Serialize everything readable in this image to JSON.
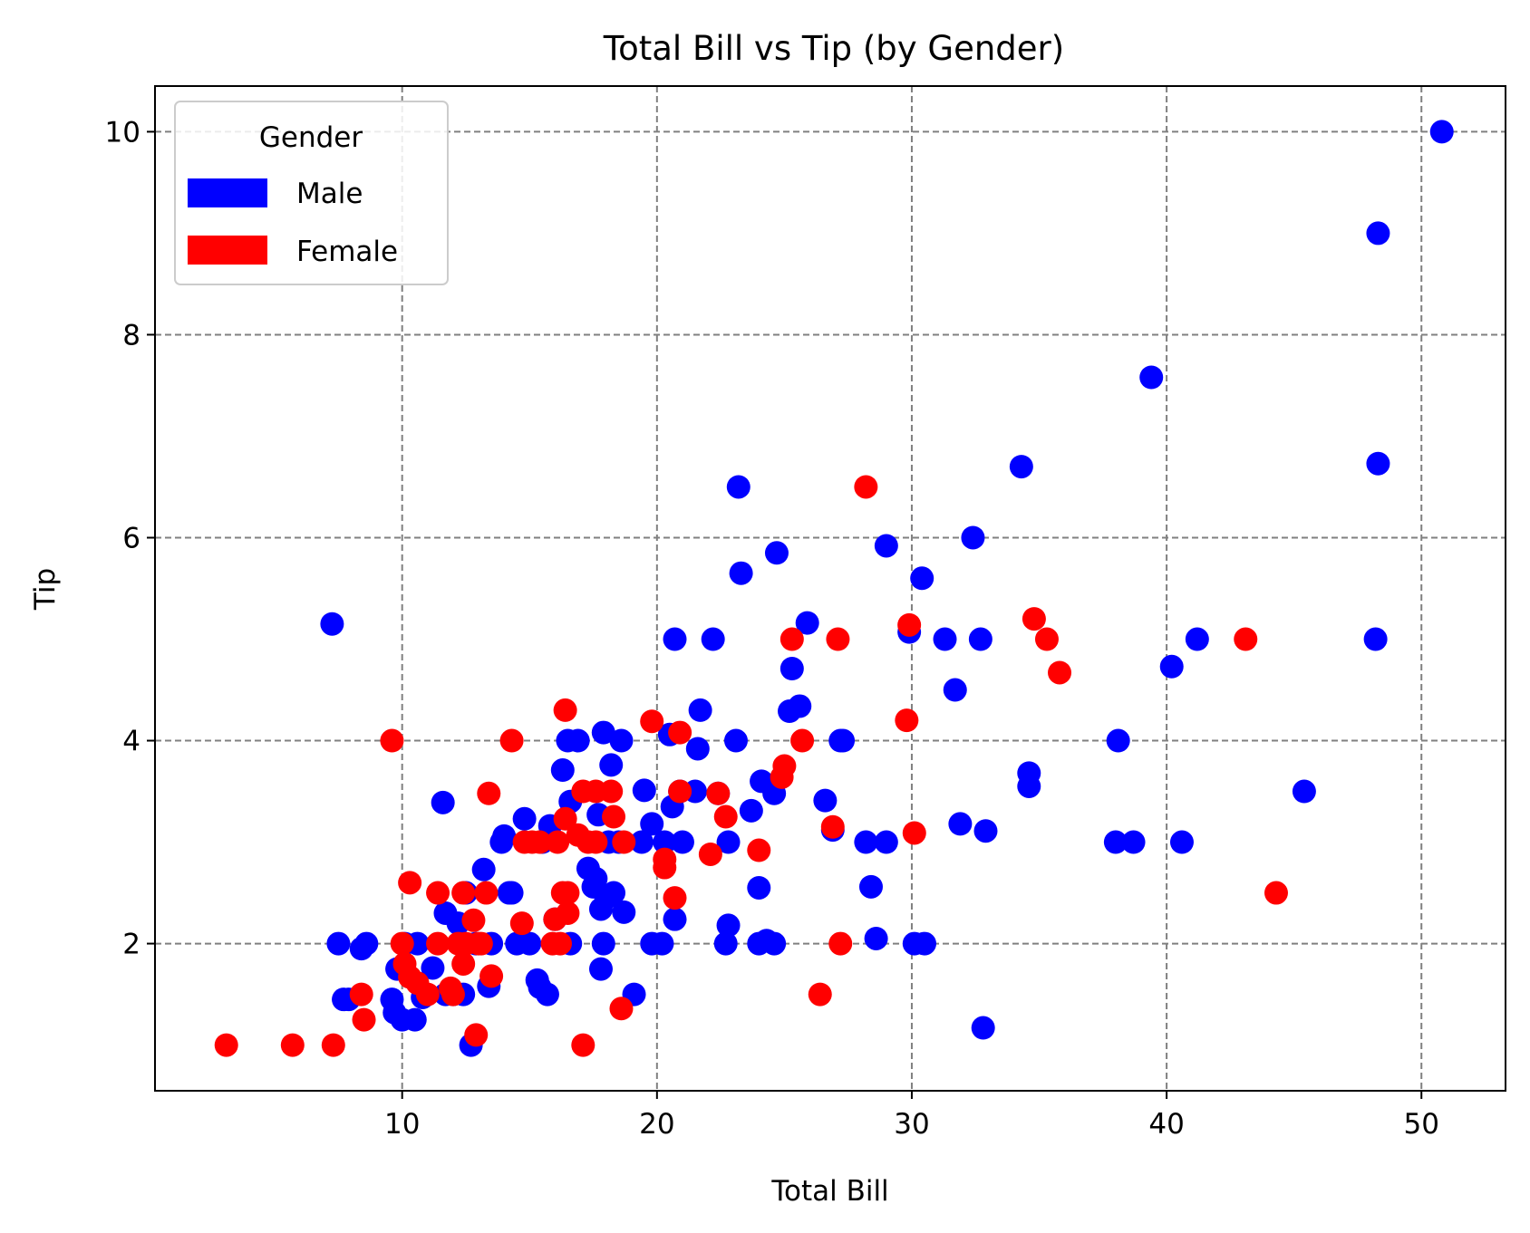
{
  "chart_data": {
    "type": "scatter",
    "title": "Total Bill vs Tip (by Gender)",
    "xlabel": "Total Bill",
    "ylabel": "Tip",
    "xlim": [
      0.3,
      53.3
    ],
    "ylim": [
      0.55,
      10.45
    ],
    "xticks": [
      10,
      20,
      30,
      40,
      50
    ],
    "xtick_labels": [
      "10",
      "20",
      "30",
      "40",
      "50"
    ],
    "yticks": [
      2,
      4,
      6,
      8,
      10
    ],
    "ytick_labels": [
      "2",
      "4",
      "6",
      "8",
      "10"
    ],
    "grid": true,
    "legend": {
      "title": "Gender",
      "placement": "top-left"
    },
    "series": [
      {
        "name": "Male",
        "color": "#0000ff",
        "points": [
          [
            7.25,
            5.15
          ],
          [
            7.5,
            2.0
          ],
          [
            7.7,
            1.45
          ],
          [
            7.9,
            1.45
          ],
          [
            8.4,
            1.95
          ],
          [
            8.6,
            2.0
          ],
          [
            9.6,
            1.45
          ],
          [
            9.7,
            1.32
          ],
          [
            9.8,
            1.75
          ],
          [
            10.0,
            1.25
          ],
          [
            10.1,
            2.0
          ],
          [
            10.5,
            1.25
          ],
          [
            10.6,
            2.0
          ],
          [
            10.8,
            1.47
          ],
          [
            11.2,
            1.76
          ],
          [
            11.6,
            3.39
          ],
          [
            11.7,
            1.5
          ],
          [
            11.7,
            2.3
          ],
          [
            12.0,
            1.5
          ],
          [
            12.2,
            2.2
          ],
          [
            12.4,
            1.5
          ],
          [
            12.5,
            2.5
          ],
          [
            12.7,
            1.0
          ],
          [
            12.9,
            2.0
          ],
          [
            13.2,
            2.73
          ],
          [
            13.4,
            1.58
          ],
          [
            13.5,
            2.0
          ],
          [
            13.9,
            3.0
          ],
          [
            14.0,
            3.06
          ],
          [
            14.2,
            2.5
          ],
          [
            14.3,
            2.5
          ],
          [
            14.5,
            2.0
          ],
          [
            14.8,
            3.23
          ],
          [
            15.0,
            2.0
          ],
          [
            15.3,
            1.64
          ],
          [
            15.4,
            1.57
          ],
          [
            15.5,
            3.0
          ],
          [
            15.7,
            1.5
          ],
          [
            15.8,
            3.16
          ],
          [
            16.0,
            2.24
          ],
          [
            16.3,
            3.71
          ],
          [
            16.5,
            4.0
          ],
          [
            16.6,
            2.0
          ],
          [
            16.6,
            3.4
          ],
          [
            16.9,
            4.0
          ],
          [
            17.3,
            2.74
          ],
          [
            17.5,
            2.56
          ],
          [
            17.6,
            2.64
          ],
          [
            17.7,
            3.27
          ],
          [
            17.8,
            1.75
          ],
          [
            17.8,
            2.34
          ],
          [
            17.9,
            4.08
          ],
          [
            17.9,
            2.0
          ],
          [
            18.0,
            2.45
          ],
          [
            18.1,
            3.0
          ],
          [
            18.2,
            3.76
          ],
          [
            18.3,
            2.5
          ],
          [
            18.5,
            3.0
          ],
          [
            18.6,
            4.0
          ],
          [
            18.7,
            2.31
          ],
          [
            19.1,
            1.5
          ],
          [
            19.4,
            3.0
          ],
          [
            19.5,
            3.51
          ],
          [
            19.8,
            2.0
          ],
          [
            19.8,
            3.18
          ],
          [
            20.2,
            2.0
          ],
          [
            20.3,
            3.0
          ],
          [
            20.5,
            4.06
          ],
          [
            20.6,
            3.35
          ],
          [
            20.7,
            5.0
          ],
          [
            20.7,
            2.24
          ],
          [
            20.9,
            3.5
          ],
          [
            21.0,
            3.0
          ],
          [
            21.5,
            3.5
          ],
          [
            21.6,
            3.92
          ],
          [
            21.7,
            4.3
          ],
          [
            22.2,
            5.0
          ],
          [
            22.4,
            3.48
          ],
          [
            22.7,
            2.0
          ],
          [
            22.8,
            2.18
          ],
          [
            22.8,
            3.0
          ],
          [
            23.1,
            4.0
          ],
          [
            23.2,
            6.5
          ],
          [
            23.3,
            5.65
          ],
          [
            23.7,
            3.31
          ],
          [
            24.0,
            2.55
          ],
          [
            24.0,
            2.0
          ],
          [
            24.1,
            3.6
          ],
          [
            24.3,
            2.03
          ],
          [
            24.6,
            3.48
          ],
          [
            24.6,
            2.0
          ],
          [
            24.7,
            5.85
          ],
          [
            25.2,
            4.29
          ],
          [
            25.3,
            4.71
          ],
          [
            25.6,
            4.34
          ],
          [
            25.9,
            5.16
          ],
          [
            26.6,
            3.41
          ],
          [
            26.9,
            3.12
          ],
          [
            27.2,
            4.0
          ],
          [
            27.3,
            4.0
          ],
          [
            28.2,
            3.0
          ],
          [
            28.4,
            2.56
          ],
          [
            28.6,
            2.05
          ],
          [
            29.0,
            5.92
          ],
          [
            29.0,
            3.0
          ],
          [
            29.9,
            5.07
          ],
          [
            30.1,
            2.0
          ],
          [
            30.4,
            5.6
          ],
          [
            30.5,
            2.0
          ],
          [
            31.3,
            5.0
          ],
          [
            31.7,
            4.5
          ],
          [
            31.9,
            3.18
          ],
          [
            32.4,
            6.0
          ],
          [
            32.7,
            5.0
          ],
          [
            32.8,
            1.17
          ],
          [
            32.9,
            3.11
          ],
          [
            34.3,
            6.7
          ],
          [
            34.6,
            3.68
          ],
          [
            34.6,
            3.55
          ],
          [
            38.0,
            3.0
          ],
          [
            38.1,
            4.0
          ],
          [
            38.7,
            3.0
          ],
          [
            39.4,
            7.58
          ],
          [
            40.2,
            4.73
          ],
          [
            40.6,
            3.0
          ],
          [
            41.2,
            5.0
          ],
          [
            45.4,
            3.5
          ],
          [
            48.2,
            5.0
          ],
          [
            48.3,
            6.73
          ],
          [
            48.3,
            9.0
          ],
          [
            50.8,
            10.0
          ]
        ]
      },
      {
        "name": "Female",
        "color": "#ff0000",
        "points": [
          [
            3.1,
            1.0
          ],
          [
            5.7,
            1.0
          ],
          [
            7.3,
            1.0
          ],
          [
            8.4,
            1.5
          ],
          [
            8.5,
            1.25
          ],
          [
            9.6,
            4.0
          ],
          [
            10.0,
            2.0
          ],
          [
            10.1,
            1.8
          ],
          [
            10.3,
            2.6
          ],
          [
            10.3,
            1.67
          ],
          [
            10.6,
            1.61
          ],
          [
            11.0,
            1.5
          ],
          [
            11.4,
            2.5
          ],
          [
            11.4,
            2.0
          ],
          [
            11.9,
            1.56
          ],
          [
            12.0,
            1.5
          ],
          [
            12.2,
            2.0
          ],
          [
            12.4,
            2.5
          ],
          [
            12.4,
            1.8
          ],
          [
            12.5,
            2.0
          ],
          [
            12.8,
            2.23
          ],
          [
            12.9,
            1.1
          ],
          [
            13.0,
            2.0
          ],
          [
            13.1,
            2.0
          ],
          [
            13.3,
            2.5
          ],
          [
            13.4,
            3.48
          ],
          [
            13.5,
            1.68
          ],
          [
            14.3,
            4.0
          ],
          [
            14.7,
            2.2
          ],
          [
            14.8,
            3.0
          ],
          [
            15.1,
            3.0
          ],
          [
            15.4,
            3.0
          ],
          [
            15.9,
            2.0
          ],
          [
            16.0,
            2.24
          ],
          [
            16.1,
            3.0
          ],
          [
            16.2,
            2.0
          ],
          [
            16.3,
            2.5
          ],
          [
            16.4,
            4.3
          ],
          [
            16.4,
            3.23
          ],
          [
            16.5,
            2.3
          ],
          [
            16.5,
            2.5
          ],
          [
            16.9,
            3.07
          ],
          [
            17.1,
            1.0
          ],
          [
            17.1,
            3.5
          ],
          [
            17.3,
            3.0
          ],
          [
            17.6,
            3.0
          ],
          [
            17.6,
            3.5
          ],
          [
            18.2,
            3.5
          ],
          [
            18.3,
            3.25
          ],
          [
            18.6,
            1.36
          ],
          [
            18.7,
            3.0
          ],
          [
            19.8,
            4.19
          ],
          [
            20.3,
            2.75
          ],
          [
            20.3,
            2.83
          ],
          [
            20.7,
            2.45
          ],
          [
            20.9,
            3.5
          ],
          [
            20.9,
            4.08
          ],
          [
            22.1,
            2.88
          ],
          [
            22.4,
            3.48
          ],
          [
            22.7,
            3.25
          ],
          [
            24.0,
            2.92
          ],
          [
            24.9,
            3.64
          ],
          [
            25.0,
            3.75
          ],
          [
            25.3,
            5.0
          ],
          [
            25.7,
            4.0
          ],
          [
            26.4,
            1.5
          ],
          [
            26.9,
            3.15
          ],
          [
            27.1,
            5.0
          ],
          [
            27.2,
            2.0
          ],
          [
            28.2,
            6.5
          ],
          [
            29.8,
            4.2
          ],
          [
            29.9,
            5.14
          ],
          [
            30.1,
            3.09
          ],
          [
            34.8,
            5.2
          ],
          [
            35.3,
            5.0
          ],
          [
            35.8,
            4.67
          ],
          [
            43.1,
            5.0
          ],
          [
            44.3,
            2.5
          ]
        ]
      }
    ]
  }
}
